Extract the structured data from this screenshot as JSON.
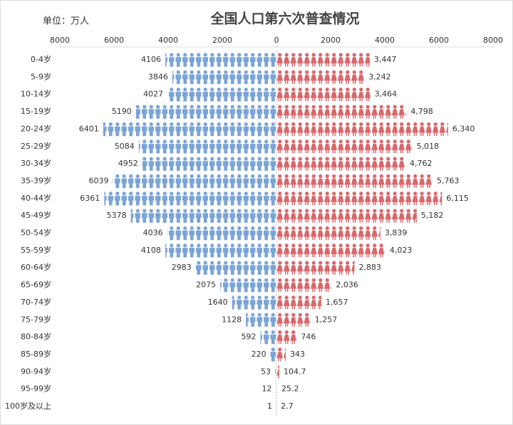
{
  "chart_data": {
    "type": "pyramid",
    "title": "全国人口第六次普查情况",
    "unit_label": "单位：万人",
    "categories": [
      "0-4岁",
      "5-9岁",
      "10-14岁",
      "15-19岁",
      "20-24岁",
      "25-29岁",
      "30-34岁",
      "35-39岁",
      "40-44岁",
      "45-49岁",
      "50-54岁",
      "55-59岁",
      "60-64岁",
      "65-69岁",
      "70-74岁",
      "75-79岁",
      "80-84岁",
      "85-89岁",
      "90-94岁",
      "95-99岁",
      "100岁及以上"
    ],
    "series": [
      {
        "side": "left",
        "color": "#7ba4d6",
        "values": [
          4106,
          3846,
          4027,
          5190,
          6401,
          5084,
          4952,
          6039,
          6361,
          5378,
          4036,
          4108,
          2983,
          2075,
          1640,
          1128,
          592,
          220,
          53,
          12,
          1
        ]
      },
      {
        "side": "right",
        "color": "#d9676b",
        "values": [
          3447,
          3242,
          3464,
          4798,
          6340,
          5018,
          4762,
          5763,
          6115,
          5182,
          3839,
          4023,
          2883,
          2036,
          1657,
          1257,
          746,
          343,
          104.7,
          25.2,
          2.7
        ],
        "value_labels": [
          "3,447",
          "3,242",
          "3,464",
          "4,798",
          "6,340",
          "5,018",
          "4,762",
          "5,763",
          "6,115",
          "5,182",
          "3,839",
          "4,023",
          "2,883",
          "2,036",
          "1,657",
          "1,257",
          "746",
          "343",
          "104.7",
          "25.2",
          "2.7"
        ]
      }
    ],
    "xlim": [
      -8000,
      8000
    ],
    "xticks": [
      {
        "value": -8000,
        "label": "8000"
      },
      {
        "value": -6000,
        "label": "6000"
      },
      {
        "value": -4000,
        "label": "4000"
      },
      {
        "value": -2000,
        "label": "2000"
      },
      0,
      2000,
      4000,
      6000,
      8000
    ]
  }
}
